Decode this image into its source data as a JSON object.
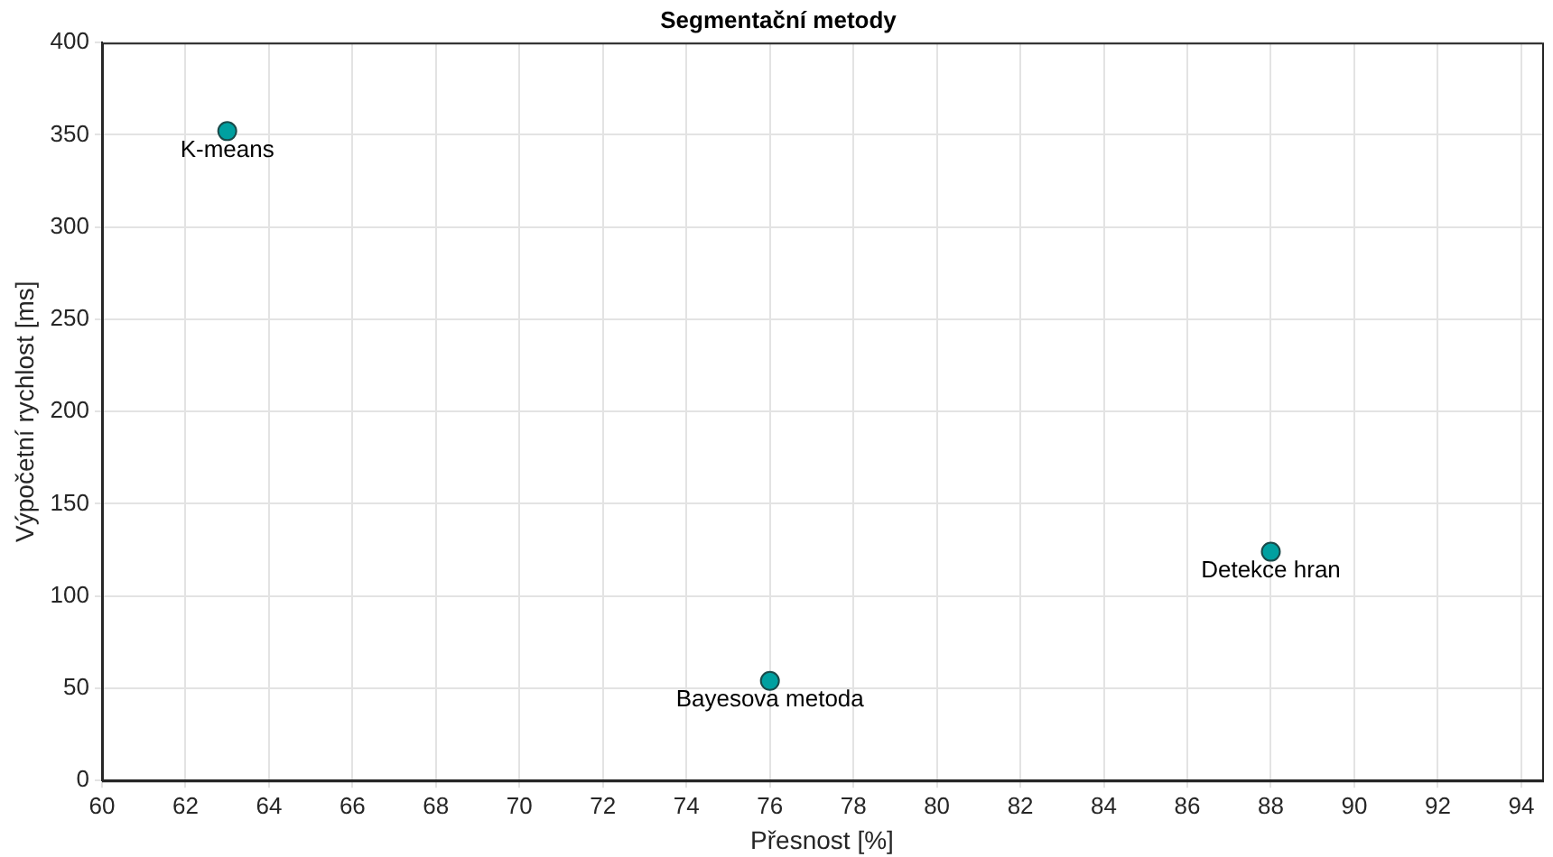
{
  "chart_data": {
    "type": "scatter",
    "title": "Segmentační metody",
    "xlabel": "Přesnost [%]",
    "ylabel": "Výpočetní rychlost [ms]",
    "x": [
      63,
      76,
      88
    ],
    "values": [
      352,
      54,
      124
    ],
    "color": "#00a0a0",
    "marker": "circle",
    "grid": true,
    "legend": false,
    "xlim": [
      60,
      94.5
    ],
    "xticks": [
      60,
      62,
      64,
      66,
      68,
      70,
      72,
      74,
      76,
      78,
      80,
      82,
      84,
      86,
      88,
      90,
      92,
      94
    ],
    "ylim": [
      0,
      400
    ],
    "yticks": [
      0,
      50,
      100,
      150,
      200,
      250,
      300,
      350,
      400
    ],
    "annotations": [
      {
        "text": "K-means",
        "x": 63,
        "y": 352
      },
      {
        "text": "Bayesova metoda",
        "x": 76,
        "y": 54
      },
      {
        "text": "Detekce hran",
        "x": 88,
        "y": 124
      }
    ]
  }
}
